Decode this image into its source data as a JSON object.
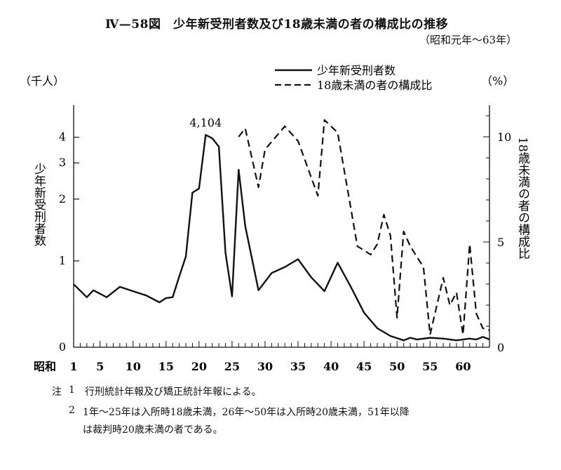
{
  "figure": {
    "title": "Ⅳ—58図　少年新受刑者数及び18歳未満の者の構成比の推移",
    "subtitle": "（昭和元年～63年）"
  },
  "notes": {
    "label": "注",
    "items": [
      {
        "num": "1",
        "text": "行刑統計年報及び矯正統計年報による。"
      },
      {
        "num": "2",
        "text": "1年～25年は入所時18歳未満，26年～50年は入所時20歳未満，51年以降"
      },
      {
        "num": "",
        "text": "は裁判時20歳未満の者である。"
      }
    ]
  },
  "chart_data": {
    "type": "line",
    "title": "",
    "x_prefix_label": "昭和",
    "xlim": [
      1,
      64
    ],
    "xticks": [
      1,
      5,
      10,
      15,
      20,
      25,
      30,
      35,
      40,
      45,
      50,
      55,
      60
    ],
    "xtick_labels": [
      "1",
      "5",
      "10",
      "15",
      "20",
      "25",
      "30",
      "35",
      "40",
      "45",
      "50",
      "55",
      "60"
    ],
    "y_left": {
      "unit_label": "（千人）",
      "axis_label": "少年新受刑者数",
      "scale": "log-like (compressed below 1)",
      "ticks": [
        0,
        1,
        2,
        3,
        4
      ],
      "tick_labels": [
        "0",
        "1",
        "2",
        "3",
        "4"
      ]
    },
    "y_right": {
      "unit_label": "（%）",
      "axis_label": "18歳未満の者の構成比",
      "ylim": [
        0,
        11.5
      ],
      "ticks": [
        0,
        5,
        10
      ],
      "tick_labels": [
        "0",
        "5",
        "10"
      ]
    },
    "grid": false,
    "legend_position": "top-right",
    "annotations": [
      {
        "text": "4,104",
        "x": 21,
        "series": "少年新受刑者数"
      }
    ],
    "series": [
      {
        "name": "少年新受刑者数",
        "axis": "left",
        "style": "solid",
        "x": [
          1,
          3,
          4,
          6,
          8,
          10,
          12,
          14,
          15,
          16,
          17,
          18,
          19,
          20,
          21,
          22,
          23,
          24,
          25,
          26,
          27,
          29,
          31,
          33,
          35,
          37,
          39,
          41,
          43,
          45,
          47,
          49,
          51,
          52,
          53,
          55,
          57,
          59,
          61,
          62,
          63,
          64
        ],
        "y": [
          0.73,
          0.58,
          0.66,
          0.58,
          0.7,
          0.65,
          0.6,
          0.52,
          0.57,
          0.58,
          0.82,
          1.05,
          2.15,
          2.25,
          4.104,
          3.95,
          3.6,
          1.1,
          0.59,
          2.78,
          1.48,
          0.66,
          0.86,
          0.93,
          1.02,
          0.81,
          0.65,
          0.98,
          0.7,
          0.4,
          0.22,
          0.13,
          0.08,
          0.11,
          0.09,
          0.11,
          0.1,
          0.08,
          0.1,
          0.09,
          0.12,
          0.09
        ]
      },
      {
        "name": "18歳未満の者の構成比",
        "axis": "right",
        "style": "dashed",
        "x": [
          26,
          27,
          29,
          30,
          33,
          35,
          38,
          39,
          41,
          44,
          46,
          47,
          48,
          49,
          50,
          51,
          52,
          54,
          55,
          57,
          58,
          59,
          60,
          61,
          62,
          63,
          64
        ],
        "y": [
          10.0,
          10.4,
          7.6,
          9.4,
          10.5,
          9.8,
          7.2,
          10.8,
          10.2,
          4.8,
          4.4,
          4.9,
          6.3,
          5.3,
          1.4,
          5.5,
          4.8,
          3.8,
          0.6,
          3.3,
          2.0,
          2.6,
          0.6,
          4.9,
          1.6,
          0.9,
          0.8
        ]
      }
    ]
  }
}
